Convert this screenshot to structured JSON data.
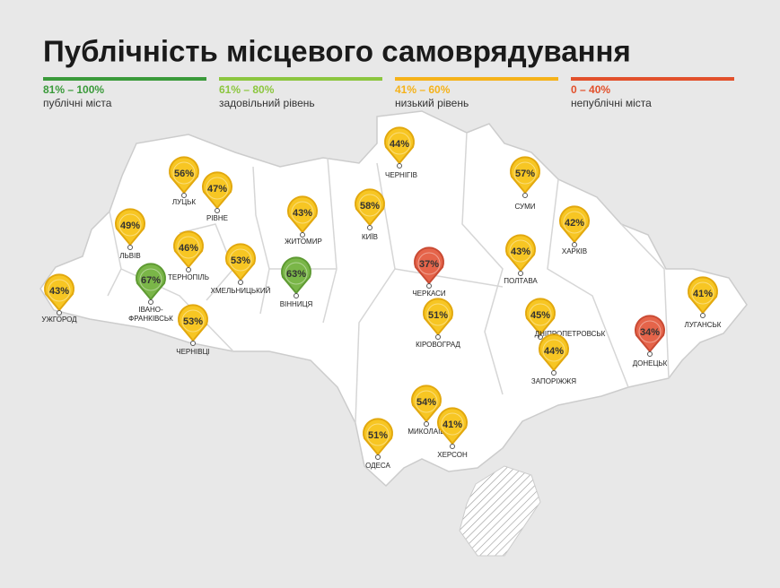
{
  "header": {
    "title": "Публічність місцевого самоврядування"
  },
  "legend": [
    {
      "range": "81% – 100%",
      "text": "публічні міста",
      "color": "#3a9a3a"
    },
    {
      "range": "61% – 80%",
      "text": "задовільний рівень",
      "color": "#8cc63f"
    },
    {
      "range": "41% – 60%",
      "text": "низький рівень",
      "color": "#f5b21a"
    },
    {
      "range": "0 – 40%",
      "text": "непублічні міста",
      "color": "#e2502b"
    }
  ],
  "cities": [
    {
      "name": "ЧЕРНІГІВ",
      "label": "44%",
      "color": "#f7c623"
    },
    {
      "name": "ЛУЦЬК",
      "label": "56%",
      "color": "#f7c623"
    },
    {
      "name": "РІВНЕ",
      "label": "47%",
      "color": "#f7c623"
    },
    {
      "name": "ЖИТОМИР",
      "label": "43%",
      "color": "#f7c623"
    },
    {
      "name": "КИЇВ",
      "label": "58%",
      "color": "#f7c623"
    },
    {
      "name": "СУМИ",
      "label": "57%",
      "color": "#f7c623"
    },
    {
      "name": "ХАРКІВ",
      "label": "42%",
      "color": "#f7c623"
    },
    {
      "name": "ЛЬВІВ",
      "label": "49%",
      "color": "#f7c623"
    },
    {
      "name": "ТЕРНОПІЛЬ",
      "label": "46%",
      "color": "#f7c623"
    },
    {
      "name": "ХМЕЛЬНИЦЬКИЙ",
      "label": "53%",
      "color": "#f7c623"
    },
    {
      "name": "ВІННИЦЯ",
      "label": "63%",
      "color": "#7ab648"
    },
    {
      "name": "ЧЕРКАСИ",
      "label": "37%",
      "color": "#e5644a"
    },
    {
      "name": "ПОЛТАВА",
      "label": "43%",
      "color": "#f7c623"
    },
    {
      "name": "УЖГОРОД",
      "label": "43%",
      "color": "#f7c623"
    },
    {
      "name_lines": [
        "ІВАНО-",
        "ФРАНКІВСЬК"
      ],
      "label": "67%",
      "color": "#7ab648"
    },
    {
      "name": "ЧЕРНІВЦІ",
      "label": "53%",
      "color": "#f7c623"
    },
    {
      "name": "КІРОВОГРАД",
      "label": "51%",
      "color": "#f7c623"
    },
    {
      "name": "ДНІПРОПЕТРОВСЬК",
      "label": "45%",
      "color": "#f7c623"
    },
    {
      "name": "ЛУГАНСЬК",
      "label": "41%",
      "color": "#f7c623"
    },
    {
      "name": "ДОНЕЦЬК",
      "label": "34%",
      "color": "#e5644a"
    },
    {
      "name": "ЗАПОРІЖЖЯ",
      "label": "44%",
      "color": "#f7c623"
    },
    {
      "name": "МИКОЛАЇВ",
      "label": "54%",
      "color": "#f7c623"
    },
    {
      "name": "ХЕРСОН",
      "label": "41%",
      "color": "#f7c623"
    },
    {
      "name": "ОДЕСА",
      "label": "51%",
      "color": "#f7c623"
    }
  ]
}
